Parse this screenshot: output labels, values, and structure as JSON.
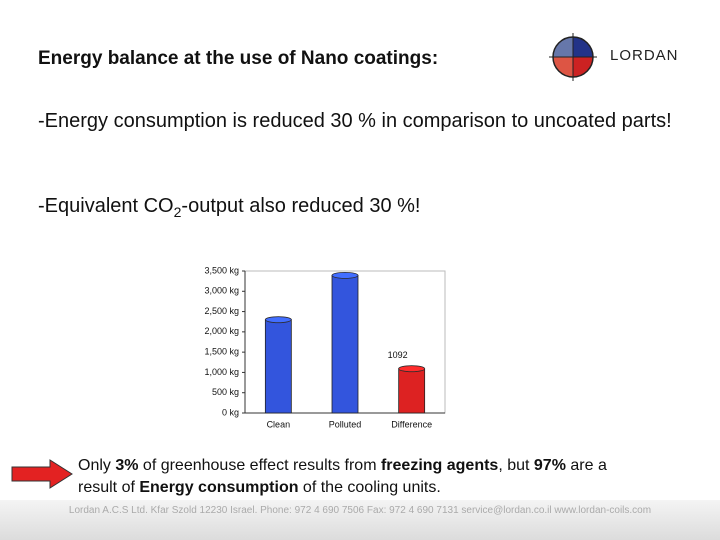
{
  "header": {
    "title": "Energy balance at the use of Nano coatings:",
    "logo": "LORDAN"
  },
  "bullets": [
    "-Energy consumption is reduced 30 % in comparison to uncoated parts!",
    [
      "-Equivalent CO",
      "2",
      "-output also reduced 30 %!"
    ]
  ],
  "chart_data": {
    "type": "bar",
    "categories": [
      "Clean",
      "Polluted",
      "Difference"
    ],
    "values": [
      2300,
      3392,
      1092
    ],
    "value_labels": [
      null,
      null,
      "1092"
    ],
    "colors": [
      "#3355dd",
      "#3355dd",
      "#dd2222"
    ],
    "ylim": [
      0,
      3500
    ],
    "yticks": [
      {
        "value": 0,
        "label": "0 kg"
      },
      {
        "value": 500,
        "label": "500 kg"
      },
      {
        "value": 1000,
        "label": "1,000 kg"
      },
      {
        "value": 1500,
        "label": "1,500 kg"
      },
      {
        "value": 2000,
        "label": "2,000 kg"
      },
      {
        "value": 2500,
        "label": "2,500 kg"
      },
      {
        "value": 3000,
        "label": "3,000 kg"
      },
      {
        "value": 3500,
        "label": "3,500 kg"
      }
    ]
  },
  "note": [
    {
      "text": "Only ",
      "bold": false
    },
    {
      "text": "3%",
      "bold": true
    },
    {
      "text": " of greenhouse effect results from ",
      "bold": false
    },
    {
      "text": "freezing agents",
      "bold": true
    },
    {
      "text": ", but ",
      "bold": false
    },
    {
      "text": "97%",
      "bold": true
    },
    {
      "text": " are a result of ",
      "bold": false
    },
    {
      "text": "Energy consumption",
      "bold": true
    },
    {
      "text": " of the cooling units.",
      "bold": false
    }
  ],
  "footer": "Lordan A.C.S Ltd.  Kfar Szold 12230 Israel. Phone: 972 4 690 7506  Fax: 972 4 690 7131  service@lordan.co.il   www.lordan-coils.com"
}
